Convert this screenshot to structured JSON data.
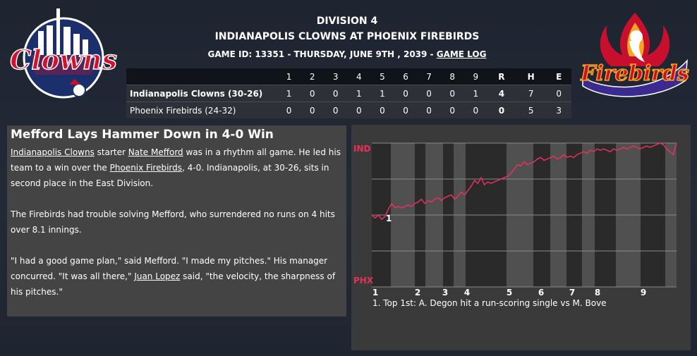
{
  "header": {
    "division": "DIVISION 4",
    "matchup": "INDIANAPOLIS CLOWNS AT PHOENIX FIREBIRDS",
    "game_info": "GAME ID: 13351 - THURSDAY, JUNE 9TH , 2039 - ",
    "game_log_link": "GAME LOG"
  },
  "logos": {
    "home": "Clowns",
    "away": "Firebirds"
  },
  "linescore": {
    "columns": [
      "1",
      "2",
      "3",
      "4",
      "5",
      "6",
      "7",
      "8",
      "9",
      "R",
      "H",
      "E"
    ],
    "rows": [
      {
        "team": "Indianapolis Clowns (30-26)",
        "innings": [
          "1",
          "0",
          "0",
          "1",
          "1",
          "0",
          "0",
          "0",
          "1"
        ],
        "r": "4",
        "h": "7",
        "e": "0"
      },
      {
        "team": "Phoenix Firebirds (24-32)",
        "innings": [
          "0",
          "0",
          "0",
          "0",
          "0",
          "0",
          "0",
          "0",
          "0"
        ],
        "r": "0",
        "h": "5",
        "e": "3"
      }
    ]
  },
  "story": {
    "headline": "Mefford Lays Hammer Down in 4-0 Win",
    "p1": {
      "team1": "Indianapolis Clowns",
      "t1": " starter ",
      "player": "Nate Mefford",
      "t2": " was in a rhythm all game. He led his team to a win over the ",
      "team2": "Phoenix Firebirds",
      "t3": ", 4-0. Indianapolis, at 30-26, sits in second place in the East Division."
    },
    "p2": "The Firebirds had trouble solving Mefford, who surrendered no runs on 4 hits over 8.1 innings.",
    "p3": {
      "t1": "\"I had a good game plan,\" said Mefford. \"I made my pitches.\" His manager concurred. \"It was all there,\" ",
      "manager": "Juan Lopez",
      "t2": " said, \"the velocity, the sharpness of his pitches.\""
    }
  },
  "win_prob": {
    "top_label": "IND",
    "bottom_label": "PHX",
    "line_color": "#e8315a",
    "label_color": "#e8315a",
    "inning_labels": [
      "1",
      "2",
      "3",
      "4",
      "5",
      "6",
      "7",
      "8",
      "9"
    ],
    "event_marker": "1",
    "caption": "1. Top 1st: A. Degon hit a run-scoring single vs M. Bove",
    "points": [
      0.5,
      0.48,
      0.5,
      0.47,
      0.49,
      0.54,
      0.58,
      0.55,
      0.56,
      0.55,
      0.56,
      0.57,
      0.56,
      0.58,
      0.59,
      0.61,
      0.58,
      0.6,
      0.59,
      0.61,
      0.62,
      0.6,
      0.62,
      0.63,
      0.64,
      0.61,
      0.63,
      0.66,
      0.64,
      0.67,
      0.7,
      0.74,
      0.72,
      0.76,
      0.71,
      0.73,
      0.72,
      0.73,
      0.74,
      0.75,
      0.76,
      0.77,
      0.79,
      0.82,
      0.85,
      0.84,
      0.87,
      0.85,
      0.86,
      0.87,
      0.89,
      0.9,
      0.88,
      0.89,
      0.9,
      0.91,
      0.89,
      0.9,
      0.92,
      0.9,
      0.91,
      0.9,
      0.92,
      0.93,
      0.94,
      0.93,
      0.95,
      0.94,
      0.96,
      0.95,
      0.96,
      0.95,
      0.94,
      0.96,
      0.95,
      0.96,
      0.97,
      0.96,
      0.97,
      0.98,
      0.97,
      0.96,
      0.97,
      0.98,
      0.97,
      0.98,
      0.99,
      1.0,
      0.99,
      0.96,
      0.94,
      0.92,
      1.0
    ]
  }
}
